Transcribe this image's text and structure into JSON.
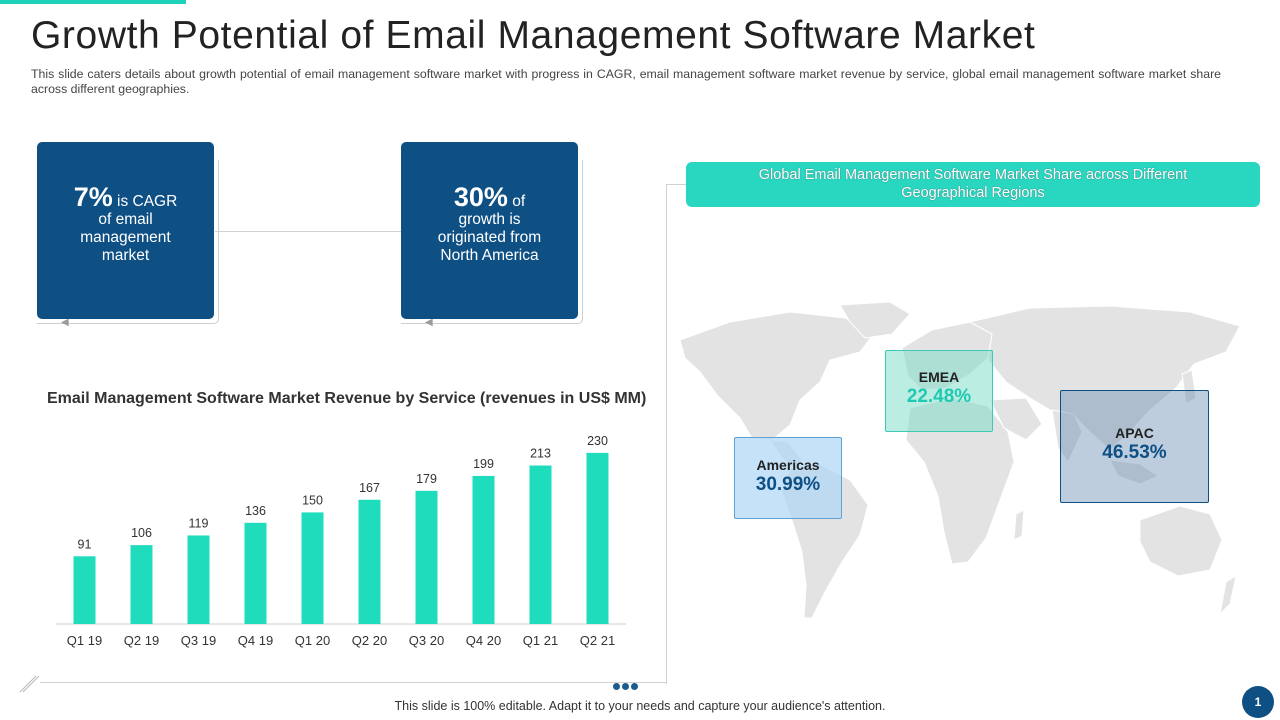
{
  "slide": {
    "title": "Growth Potential of Email Management Software Market",
    "subtitle": "This slide caters details about growth potential of email management software market with progress in CAGR, email management software market revenue by service, global email management software market share across different geographies.",
    "footer_note": "This slide is 100% editable. Adapt it to your needs and capture your audience's attention.",
    "page_number": "1"
  },
  "stats": [
    {
      "big": "7%",
      "text_1": " is CAGR",
      "text_2": "of email",
      "text_3": "management",
      "text_4": "market"
    },
    {
      "big": "30%",
      "text_1": " of",
      "text_2": "growth is",
      "text_3": "originated from",
      "text_4": "North America"
    }
  ],
  "map": {
    "header": "Global Email Management Software Market Share across Different Geographical Regions",
    "regions": [
      {
        "name": "Americas",
        "value": "30.99%"
      },
      {
        "name": "EMEA",
        "value": "22.48%"
      },
      {
        "name": "APAC",
        "value": "46.53%"
      }
    ]
  },
  "colors": {
    "bar": "#1fdcbd",
    "navy": "#0e4f84",
    "teal": "#29d6c0",
    "map_land": "#e3e3e3"
  },
  "chart_data": {
    "type": "bar",
    "title": "Email Management Software Market Revenue by Service (revenues in US$ MM)",
    "categories": [
      "Q1 19",
      "Q2 19",
      "Q3 19",
      "Q4 19",
      "Q1 20",
      "Q2 20",
      "Q3 20",
      "Q4 20",
      "Q1 21",
      "Q2 21"
    ],
    "values": [
      91,
      106,
      119,
      136,
      150,
      167,
      179,
      199,
      213,
      230
    ],
    "xlabel": "",
    "ylabel": "",
    "ylim": [
      0,
      250
    ],
    "grid": false,
    "legend": "none"
  }
}
